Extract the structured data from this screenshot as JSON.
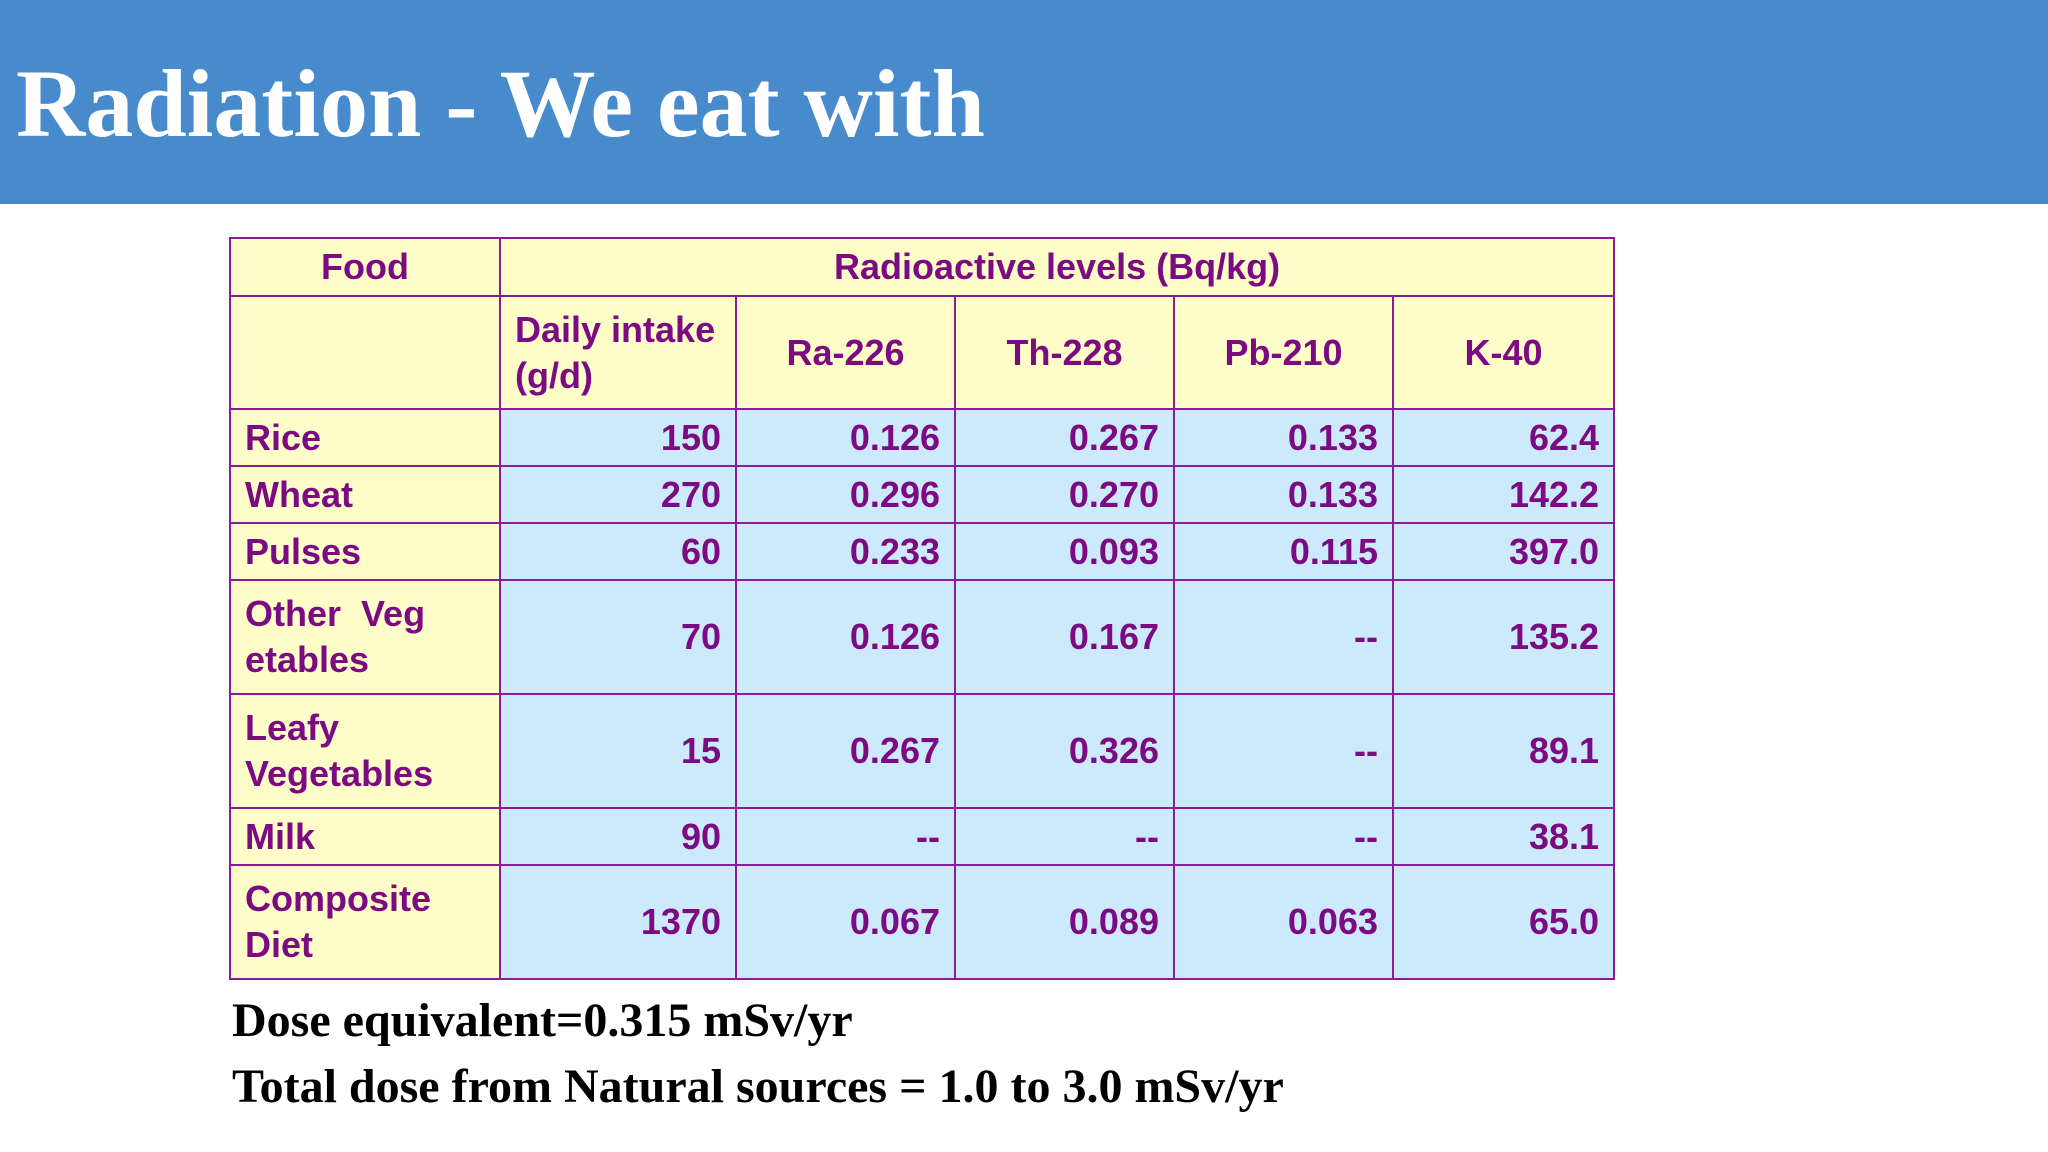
{
  "slide": {
    "title": "Radiation - We eat with"
  },
  "table": {
    "header_food": "Food",
    "header_group": "Radioactive levels (Bq/kg)",
    "food_subheader": "",
    "intake_header_line1": "Daily intake",
    "intake_header_line2": "(g/d)",
    "isotopes": [
      "Ra-226",
      "Th-228",
      "Pb-210",
      "K-40"
    ],
    "rows": [
      {
        "food_lines": [
          "Rice"
        ],
        "intake": "150",
        "values": [
          "0.126",
          "0.267",
          "0.133",
          "62.4"
        ]
      },
      {
        "food_lines": [
          "Wheat"
        ],
        "intake": "270",
        "values": [
          "0.296",
          "0.270",
          "0.133",
          "142.2"
        ]
      },
      {
        "food_lines": [
          "Pulses"
        ],
        "intake": "60",
        "values": [
          "0.233",
          "0.093",
          "0.115",
          "397.0"
        ]
      },
      {
        "food_lines": [
          "Other  Veg",
          "etables"
        ],
        "intake": "70",
        "values": [
          "0.126",
          "0.167",
          "--",
          "135.2"
        ]
      },
      {
        "food_lines": [
          "Leafy",
          "Vegetables"
        ],
        "intake": "15",
        "values": [
          "0.267",
          "0.326",
          "--",
          "89.1"
        ]
      },
      {
        "food_lines": [
          "Milk"
        ],
        "intake": "90",
        "values": [
          "--",
          "--",
          "--",
          "38.1"
        ]
      },
      {
        "food_lines": [
          "Composite",
          "Diet"
        ],
        "intake": "1370",
        "values": [
          "0.067",
          "0.089",
          "0.063",
          "65.0"
        ]
      }
    ]
  },
  "footer": {
    "dose_line": "Dose equivalent=0.315 mSv/yr",
    "total_line": "Total dose from Natural sources = 1.0 to 3.0 mSv/yr"
  }
}
